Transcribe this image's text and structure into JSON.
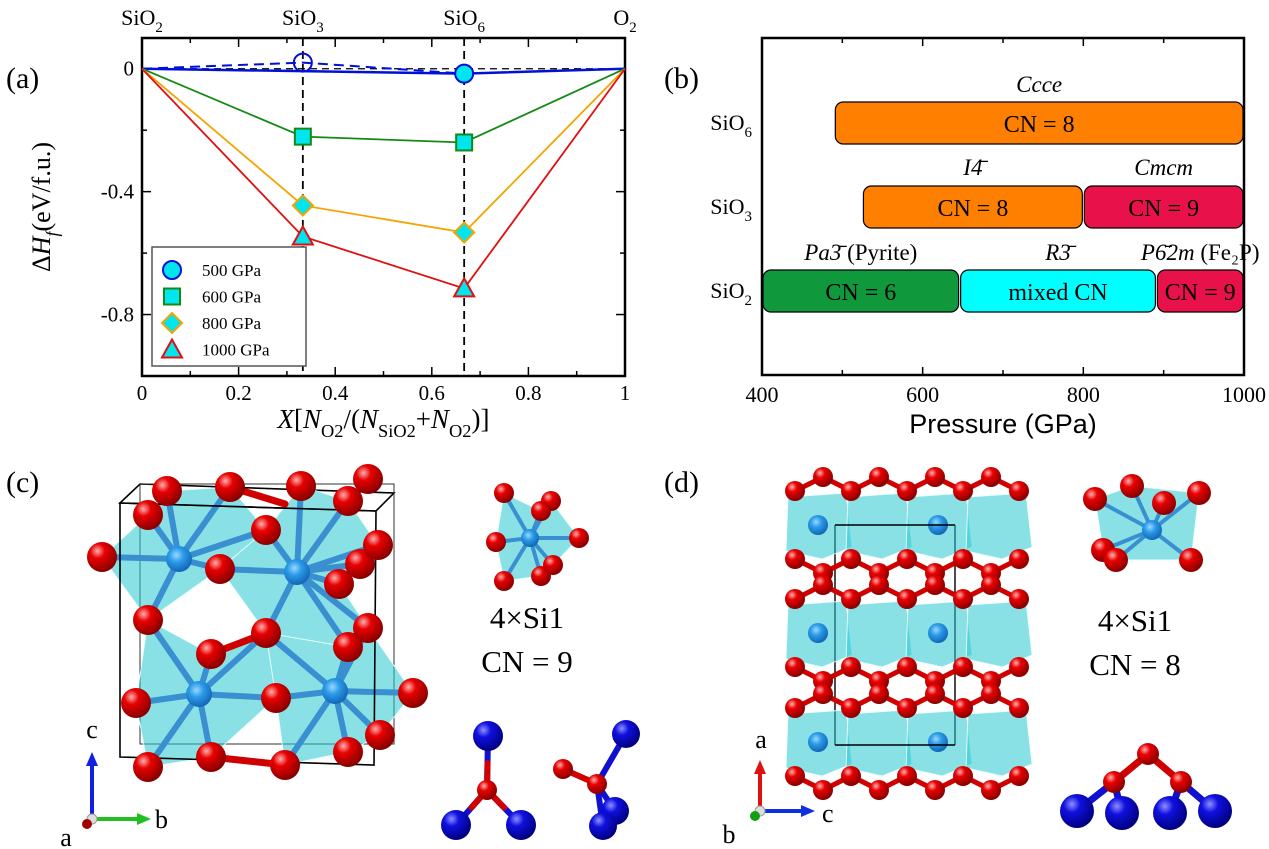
{
  "panels": {
    "a": "(a)",
    "b": "(b)",
    "c": "(c)",
    "d": "(d)"
  },
  "chart_data": [
    {
      "panel": "a",
      "type": "line",
      "xlim": [
        0,
        1
      ],
      "ylim": [
        -1.0,
        0.1
      ],
      "xticks": [
        "0",
        "0.2",
        "0.4",
        "0.6",
        "0.8",
        "1"
      ],
      "xtick_values": [
        0,
        0.2,
        0.4,
        0.6,
        0.8,
        1
      ],
      "yticks": [
        "0",
        "-0.4",
        "-0.8"
      ],
      "ytick_values": [
        0,
        -0.4,
        -0.8
      ],
      "top_labels": [
        {
          "base": "SiO",
          "sub": "2",
          "x": 0
        },
        {
          "base": "SiO",
          "sub": "3",
          "x": 0.333
        },
        {
          "base": "SiO",
          "sub": "6",
          "x": 0.667
        },
        {
          "base": "O",
          "sub": "2",
          "x": 1
        }
      ],
      "ylabel_parts": [
        {
          "t": "Δ"
        },
        {
          "t": "H",
          "it": true
        },
        {
          "t": "f",
          "it": true,
          "sub": true
        },
        {
          "t": "(eV/f.u.)"
        }
      ],
      "xlabel_parts": [
        {
          "t": "X",
          "it": true
        },
        {
          "t": "["
        },
        {
          "t": "N",
          "it": true
        },
        {
          "t": "O2",
          "sub": true
        },
        {
          "t": "/("
        },
        {
          "t": "N",
          "it": true
        },
        {
          "t": "SiO2",
          "sub": true
        },
        {
          "t": "+"
        },
        {
          "t": "N",
          "it": true
        },
        {
          "t": "O2",
          "sub": true
        },
        {
          "t": ")]"
        }
      ],
      "reference_lines": {
        "horizontal_dashed_y": 0,
        "vertical_dashed_x": [
          0.333,
          0.667
        ]
      },
      "legend_placement": "lower-left",
      "marker_fill": "#00e5ee",
      "series": [
        {
          "name": "500 GPa",
          "color": "#0010d8",
          "marker": "circle",
          "hull": [
            {
              "x": 0,
              "y": 0
            },
            {
              "x": 0.667,
              "y": -0.016
            },
            {
              "x": 1,
              "y": 0
            }
          ],
          "points": [
            {
              "x": 0.333,
              "y": 0.02,
              "filled": false
            },
            {
              "x": 0.667,
              "y": -0.016,
              "filled": true
            }
          ]
        },
        {
          "name": "600 GPa",
          "color": "#138a13",
          "marker": "square",
          "hull": [
            {
              "x": 0,
              "y": 0
            },
            {
              "x": 0.333,
              "y": -0.221
            },
            {
              "x": 0.667,
              "y": -0.24
            },
            {
              "x": 1,
              "y": 0
            }
          ],
          "points": [
            {
              "x": 0.333,
              "y": -0.221,
              "filled": true
            },
            {
              "x": 0.667,
              "y": -0.24,
              "filled": true
            }
          ]
        },
        {
          "name": "800 GPa",
          "color": "#f5a300",
          "marker": "diamond",
          "hull": [
            {
              "x": 0,
              "y": 0
            },
            {
              "x": 0.333,
              "y": -0.445
            },
            {
              "x": 0.667,
              "y": -0.533
            },
            {
              "x": 1,
              "y": 0
            }
          ],
          "points": [
            {
              "x": 0.333,
              "y": -0.445,
              "filled": true
            },
            {
              "x": 0.667,
              "y": -0.533,
              "filled": true
            }
          ]
        },
        {
          "name": "1000 GPa",
          "color": "#e01010",
          "marker": "triangle",
          "hull": [
            {
              "x": 0,
              "y": 0
            },
            {
              "x": 0.333,
              "y": -0.546
            },
            {
              "x": 0.667,
              "y": -0.715
            },
            {
              "x": 1,
              "y": 0
            }
          ],
          "points": [
            {
              "x": 0.333,
              "y": -0.546,
              "filled": true
            },
            {
              "x": 0.667,
              "y": -0.715,
              "filled": true
            }
          ]
        }
      ]
    },
    {
      "panel": "b",
      "type": "bar",
      "orientation": "horizontal-range",
      "xlim": [
        400,
        1000
      ],
      "xticks": [
        "400",
        "600",
        "800",
        "1000"
      ],
      "xtick_values": [
        400,
        600,
        800,
        1000
      ],
      "xlabel": "Pressure (GPa)",
      "rows": [
        {
          "base": "SiO",
          "sub": "6",
          "segments": [
            {
              "start": 490,
              "end": 1000,
              "label": "CN = 8",
              "title": "Ccce",
              "note": "",
              "color": "#ff7f00"
            }
          ]
        },
        {
          "base": "SiO",
          "sub": "3",
          "segments": [
            {
              "start": 525,
              "end": 800,
              "label": "CN = 8",
              "title": "I4̄",
              "note": "",
              "color": "#ff7f00"
            },
            {
              "start": 800,
              "end": 1000,
              "label": "CN = 9",
              "title": "Cmcm",
              "note": "",
              "color": "#e8114a"
            }
          ]
        },
        {
          "base": "SiO",
          "sub": "2",
          "segments": [
            {
              "start": 400,
              "end": 646,
              "label": "CN = 6",
              "title": "Pa3̄",
              "note": " (Pyrite)",
              "color": "#10993c"
            },
            {
              "start": 646,
              "end": 891,
              "label": "mixed CN",
              "title": "R3̄",
              "note": "",
              "color": "#00ffff"
            },
            {
              "start": 891,
              "end": 1000,
              "label": "CN = 9",
              "title": "P6̄2m",
              "note": " (Fe₂P)",
              "color": "#e8114a"
            }
          ]
        }
      ]
    }
  ],
  "structures": {
    "c": {
      "unit": "4×Si1",
      "cn": "CN = 9",
      "axis_labels": {
        "up": "c",
        "right": "b",
        "out": "a"
      }
    },
    "d": {
      "unit": "4×Si1",
      "cn": "CN = 8",
      "axis_labels": {
        "up": "a",
        "right": "c",
        "out": "b"
      }
    },
    "colors": {
      "oxygen": "#e00000",
      "silicon": "#1e90e8",
      "polyhedron": "#2fd0d8",
      "bond_atom": "#1010d0"
    }
  }
}
